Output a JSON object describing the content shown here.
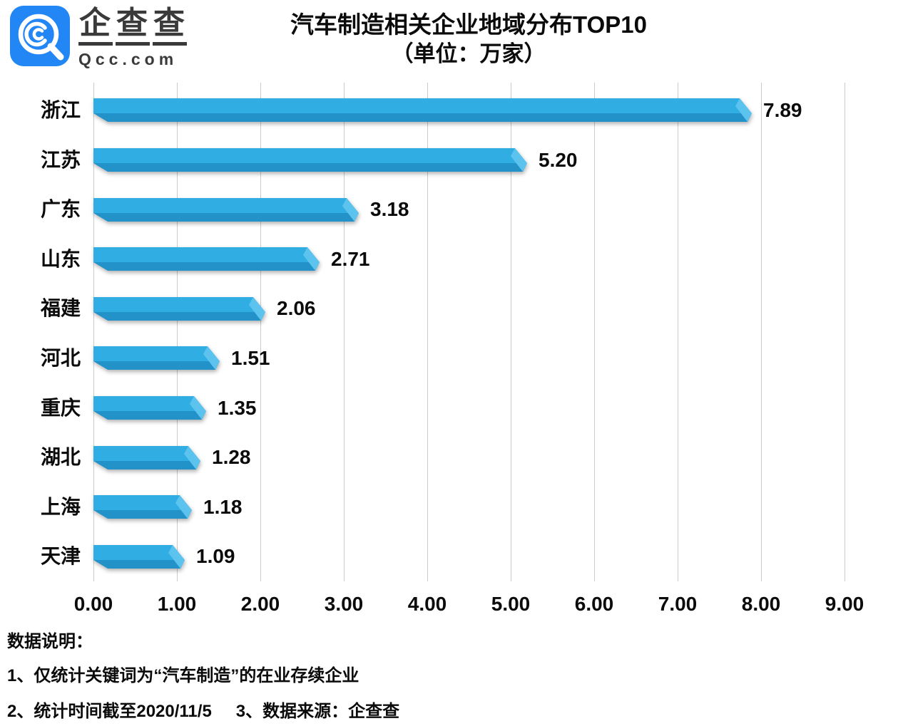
{
  "logo": {
    "brand_cn": "企查查",
    "brand_en": "Qcc.com",
    "brand_color": "#2286f5",
    "icon": "qcc-magnifier-logo"
  },
  "title": {
    "line1": "汽车制造相关企业地域分布TOP10",
    "line2": "（单位：万家）"
  },
  "chart_data": {
    "type": "bar",
    "orientation": "horizontal",
    "title": "汽车制造相关企业地域分布TOP10",
    "subtitle": "（单位：万家）",
    "unit": "万家",
    "categories": [
      "浙江",
      "江苏",
      "广东",
      "山东",
      "福建",
      "河北",
      "重庆",
      "湖北",
      "上海",
      "天津"
    ],
    "values": [
      7.89,
      5.2,
      3.18,
      2.71,
      2.06,
      1.51,
      1.35,
      1.28,
      1.18,
      1.09
    ],
    "value_labels": [
      "7.89",
      "5.20",
      "3.18",
      "2.71",
      "2.06",
      "1.51",
      "1.35",
      "1.28",
      "1.18",
      "1.09"
    ],
    "xlim": [
      0,
      9
    ],
    "x_ticks": [
      "0.00",
      "1.00",
      "2.00",
      "3.00",
      "4.00",
      "5.00",
      "6.00",
      "7.00",
      "8.00",
      "9.00"
    ],
    "grid": "vertical",
    "gridline_color": "#cbcbcb",
    "bar_color_top": "#30aee4",
    "bar_color_bottom": "#2392c9",
    "bar_color_bevel": "#5cc3ee",
    "legend": "none"
  },
  "notes": {
    "heading": "数据说明：",
    "note1": "1、仅统计关键词为“汽车制造”的在业存续企业",
    "note2": "2、统计时间截至2020/11/5",
    "note3": "3、数据来源：企查查"
  }
}
